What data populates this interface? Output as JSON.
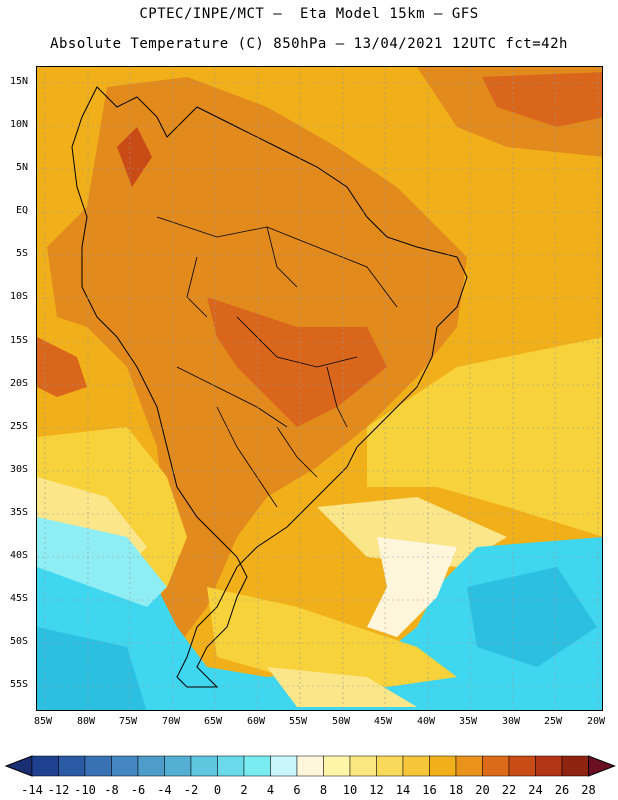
{
  "header": {
    "line1": "CPTEC/INPE/MCT –  Eta Model 15km – GFS",
    "line2": "Absolute Temperature (C) 850hPa – 13/04/2021 12UTC fct=42h"
  },
  "map": {
    "lat_labels": [
      "15N",
      "10N",
      "5N",
      "EQ",
      "5S",
      "10S",
      "15S",
      "20S",
      "25S",
      "30S",
      "35S",
      "40S",
      "45S",
      "50S",
      "55S"
    ],
    "lon_labels": [
      "85W",
      "80W",
      "75W",
      "70W",
      "65W",
      "60W",
      "55W",
      "50W",
      "45W",
      "40W",
      "35W",
      "30W",
      "25W",
      "20W"
    ],
    "colors": {
      "ocean_background": "#f1b01a",
      "warm_regions": "#e38a1c",
      "hot_core": "#d9661b",
      "yellow_band": "#f8d23a",
      "pale_yellow": "#fce68a",
      "cream": "#fff6dc",
      "light_cyan": "#8eeef3",
      "cyan": "#3fd6ef",
      "teal": "#2bbfe2"
    }
  },
  "colorbar": {
    "tick_labels": [
      "-14",
      "-12",
      "-10",
      "-8",
      "-6",
      "-4",
      "-2",
      "0",
      "2",
      "4",
      "6",
      "8",
      "10",
      "12",
      "14",
      "16",
      "18",
      "20",
      "22",
      "24",
      "26",
      "28"
    ],
    "colors": [
      "#1f3f8f",
      "#2a5aa3",
      "#3872b5",
      "#4487c1",
      "#4d9cc9",
      "#54b0d3",
      "#5ec6df",
      "#6ad9ea",
      "#79ecf1",
      "#c8f6fb",
      "#fff6dc",
      "#fff5a8",
      "#fbe77f",
      "#f9d95a",
      "#f5c63a",
      "#f1b01a",
      "#e9931c",
      "#dd6a18",
      "#c94c17",
      "#b23515",
      "#8e2311"
    ]
  }
}
